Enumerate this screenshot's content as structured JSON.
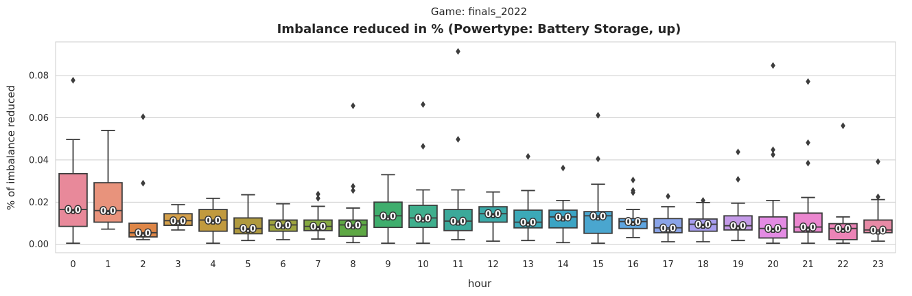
{
  "chart_data": {
    "type": "boxplot",
    "suptitle": "Game: finals_2022",
    "title": "Imbalance reduced in % (Powertype: Battery Storage, up)",
    "xlabel": "hour",
    "ylabel": "% of imbalance reduced",
    "ylim": [
      -0.004,
      0.096
    ],
    "yticks": [
      0.0,
      0.02,
      0.04,
      0.06,
      0.08
    ],
    "ytick_labels": [
      "0.00",
      "0.02",
      "0.04",
      "0.06",
      "0.08"
    ],
    "grid": "y",
    "categories": [
      "0",
      "1",
      "2",
      "3",
      "4",
      "5",
      "6",
      "7",
      "8",
      "9",
      "10",
      "11",
      "12",
      "13",
      "14",
      "15",
      "16",
      "17",
      "18",
      "19",
      "20",
      "21",
      "22",
      "23"
    ],
    "colors": [
      "#e8899a",
      "#e8937c",
      "#de8647",
      "#d4a04b",
      "#c19a3e",
      "#b09a3f",
      "#9ea43f",
      "#86aa42",
      "#5ea844",
      "#3fae6d",
      "#3faf8d",
      "#3ba99a",
      "#3ba9a8",
      "#3ca9b8",
      "#3ba4c4",
      "#4aa6cf",
      "#5fa5e0",
      "#8aa4e8",
      "#a79ded",
      "#c49ae8",
      "#e38be3",
      "#eb86cf",
      "#ec84b7",
      "#e78aa6"
    ],
    "boxes": [
      {
        "whislo": 0.0005,
        "q1": 0.0085,
        "med": 0.0165,
        "q3": 0.0335,
        "whishi": 0.0497,
        "fliers": [
          0.0778
        ]
      },
      {
        "whislo": 0.0072,
        "q1": 0.0105,
        "med": 0.016,
        "q3": 0.0292,
        "whishi": 0.054,
        "fliers": []
      },
      {
        "whislo": 0.0022,
        "q1": 0.0035,
        "med": 0.0055,
        "q3": 0.01,
        "whishi": 0.01,
        "fliers": [
          0.029,
          0.0605
        ]
      },
      {
        "whislo": 0.0068,
        "q1": 0.009,
        "med": 0.0112,
        "q3": 0.0145,
        "whishi": 0.0188,
        "fliers": []
      },
      {
        "whislo": 0.0005,
        "q1": 0.0062,
        "med": 0.0115,
        "q3": 0.0165,
        "whishi": 0.0218,
        "fliers": []
      },
      {
        "whislo": 0.0018,
        "q1": 0.005,
        "med": 0.0075,
        "q3": 0.0125,
        "whishi": 0.0235,
        "fliers": []
      },
      {
        "whislo": 0.0022,
        "q1": 0.0062,
        "med": 0.0092,
        "q3": 0.0115,
        "whishi": 0.0192,
        "fliers": []
      },
      {
        "whislo": 0.0025,
        "q1": 0.0065,
        "med": 0.0085,
        "q3": 0.0115,
        "whishi": 0.018,
        "fliers": [
          0.0218,
          0.0238
        ]
      },
      {
        "whislo": 0.0008,
        "q1": 0.0038,
        "med": 0.0092,
        "q3": 0.0115,
        "whishi": 0.0172,
        "fliers": [
          0.0255,
          0.0275,
          0.0657
        ]
      },
      {
        "whislo": 0.0005,
        "q1": 0.008,
        "med": 0.0135,
        "q3": 0.02,
        "whishi": 0.033,
        "fliers": []
      },
      {
        "whislo": 0.0005,
        "q1": 0.008,
        "med": 0.0125,
        "q3": 0.0185,
        "whishi": 0.0258,
        "fliers": [
          0.0465,
          0.0663
        ]
      },
      {
        "whislo": 0.0022,
        "q1": 0.0065,
        "med": 0.011,
        "q3": 0.0165,
        "whishi": 0.0258,
        "fliers": [
          0.0498,
          0.0915
        ]
      },
      {
        "whislo": 0.0015,
        "q1": 0.0105,
        "med": 0.0145,
        "q3": 0.0178,
        "whishi": 0.0248,
        "fliers": []
      },
      {
        "whislo": 0.0018,
        "q1": 0.0078,
        "med": 0.0105,
        "q3": 0.0162,
        "whishi": 0.0255,
        "fliers": [
          0.0417
        ]
      },
      {
        "whislo": 0.0008,
        "q1": 0.0078,
        "med": 0.013,
        "q3": 0.0162,
        "whishi": 0.0208,
        "fliers": [
          0.0362
        ]
      },
      {
        "whislo": 0.0005,
        "q1": 0.0052,
        "med": 0.0135,
        "q3": 0.0155,
        "whishi": 0.0285,
        "fliers": [
          0.0405,
          0.0612
        ]
      },
      {
        "whislo": 0.0032,
        "q1": 0.0075,
        "med": 0.0108,
        "q3": 0.0122,
        "whishi": 0.0165,
        "fliers": [
          0.0245,
          0.0255,
          0.0305
        ]
      },
      {
        "whislo": 0.0012,
        "q1": 0.0055,
        "med": 0.0078,
        "q3": 0.0122,
        "whishi": 0.0178,
        "fliers": [
          0.0228
        ]
      },
      {
        "whislo": 0.0012,
        "q1": 0.0062,
        "med": 0.0095,
        "q3": 0.012,
        "whishi": 0.0198,
        "fliers": [
          0.0208
        ]
      },
      {
        "whislo": 0.0018,
        "q1": 0.0068,
        "med": 0.0088,
        "q3": 0.0135,
        "whishi": 0.0195,
        "fliers": [
          0.0308,
          0.0438
        ]
      },
      {
        "whislo": 0.0005,
        "q1": 0.003,
        "med": 0.0075,
        "q3": 0.013,
        "whishi": 0.0208,
        "fliers": [
          0.0425,
          0.0448,
          0.0848
        ]
      },
      {
        "whislo": 0.0005,
        "q1": 0.0058,
        "med": 0.0082,
        "q3": 0.0148,
        "whishi": 0.0222,
        "fliers": [
          0.0385,
          0.0482,
          0.0772
        ]
      },
      {
        "whislo": 0.0005,
        "q1": 0.0022,
        "med": 0.0075,
        "q3": 0.0098,
        "whishi": 0.013,
        "fliers": [
          0.0562
        ]
      },
      {
        "whislo": 0.0015,
        "q1": 0.0055,
        "med": 0.0068,
        "q3": 0.0115,
        "whishi": 0.0212,
        "fliers": [
          0.0225,
          0.0392
        ]
      }
    ],
    "median_labels": [
      "0.0",
      "0.0",
      "0.0",
      "0.0",
      "0.0",
      "0.0",
      "0.0",
      "0.0",
      "0.0",
      "0.0",
      "0.0",
      "0.0",
      "0.0",
      "0.0",
      "0.0",
      "0.0",
      "0.0",
      "0.0",
      "0.0",
      "0.0",
      "0.0",
      "0.0",
      "0.0",
      "0.0"
    ]
  }
}
